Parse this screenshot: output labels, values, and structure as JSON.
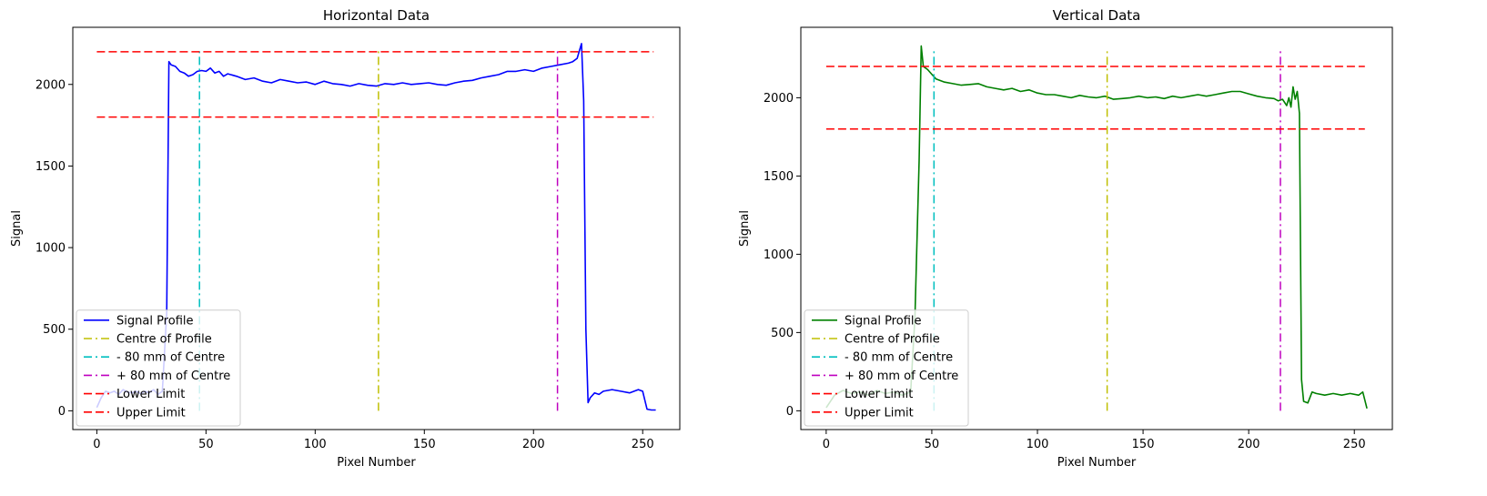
{
  "chart_data": [
    {
      "type": "line",
      "title": "Horizontal Data",
      "xlabel": "Pixel Number",
      "ylabel": "Signal",
      "xlim": [
        -11,
        267
      ],
      "ylim": [
        -115,
        2350
      ],
      "xticks": [
        0,
        50,
        100,
        150,
        200,
        250
      ],
      "yticks": [
        0,
        500,
        1000,
        1500,
        2000
      ],
      "legend_position": "lower-left",
      "series": [
        {
          "name": "Signal Profile",
          "color": "#0000ff",
          "style": "solid",
          "x": [
            0,
            2,
            4,
            6,
            8,
            10,
            12,
            14,
            16,
            18,
            20,
            22,
            24,
            26,
            28,
            30,
            32,
            33,
            34,
            36,
            38,
            40,
            42,
            44,
            46,
            48,
            50,
            52,
            54,
            56,
            58,
            60,
            64,
            68,
            72,
            76,
            80,
            84,
            88,
            92,
            96,
            100,
            104,
            108,
            112,
            116,
            120,
            124,
            128,
            132,
            136,
            140,
            144,
            148,
            152,
            156,
            160,
            164,
            168,
            172,
            176,
            180,
            184,
            188,
            192,
            196,
            200,
            204,
            208,
            212,
            216,
            218,
            220,
            222,
            223,
            224,
            225,
            226,
            228,
            230,
            232,
            236,
            240,
            244,
            248,
            250,
            252,
            254,
            256
          ],
          "y": [
            20,
            80,
            120,
            110,
            120,
            100,
            130,
            115,
            110,
            120,
            105,
            120,
            110,
            130,
            100,
            120,
            600,
            2140,
            2120,
            2110,
            2080,
            2070,
            2050,
            2060,
            2080,
            2085,
            2080,
            2100,
            2070,
            2080,
            2050,
            2065,
            2050,
            2030,
            2040,
            2020,
            2010,
            2030,
            2020,
            2010,
            2015,
            2000,
            2020,
            2005,
            2000,
            1990,
            2005,
            1995,
            1990,
            2005,
            2000,
            2010,
            2000,
            2005,
            2010,
            2000,
            1995,
            2010,
            2020,
            2025,
            2040,
            2050,
            2060,
            2080,
            2080,
            2090,
            2080,
            2100,
            2110,
            2120,
            2130,
            2140,
            2160,
            2250,
            1900,
            500,
            50,
            80,
            110,
            100,
            120,
            130,
            120,
            110,
            130,
            120,
            10,
            5,
            5
          ]
        },
        {
          "name": "Centre of Profile",
          "color": "#bfbf00",
          "style": "dashdot",
          "x": [
            129,
            129
          ],
          "y": [
            0,
            2220
          ]
        },
        {
          "name": "- 80 mm of Centre",
          "color": "#00bfbf",
          "style": "dashdot",
          "x": [
            47,
            47
          ],
          "y": [
            0,
            2220
          ]
        },
        {
          "name": "+ 80 mm of Centre",
          "color": "#bf00bf",
          "style": "dashdot",
          "x": [
            211,
            211
          ],
          "y": [
            0,
            2220
          ]
        },
        {
          "name": "Lower Limit",
          "color": "#ff0000",
          "style": "dashed",
          "x": [
            0,
            255
          ],
          "y": [
            1800,
            1800
          ]
        },
        {
          "name": "Upper Limit",
          "color": "#ff0000",
          "style": "dashed",
          "x": [
            0,
            255
          ],
          "y": [
            2200,
            2200
          ]
        }
      ]
    },
    {
      "type": "line",
      "title": "Vertical Data",
      "xlabel": "Pixel Number",
      "ylabel": "Signal",
      "xlim": [
        -12,
        268
      ],
      "ylim": [
        -120,
        2450
      ],
      "xticks": [
        0,
        50,
        100,
        150,
        200,
        250
      ],
      "yticks": [
        0,
        500,
        1000,
        1500,
        2000
      ],
      "legend_position": "lower-left",
      "series": [
        {
          "name": "Signal Profile",
          "color": "#008000",
          "style": "solid",
          "x": [
            0,
            4,
            8,
            12,
            16,
            20,
            24,
            28,
            32,
            36,
            40,
            42,
            44,
            45,
            46,
            48,
            50,
            52,
            54,
            56,
            60,
            64,
            68,
            72,
            76,
            80,
            84,
            88,
            92,
            96,
            100,
            104,
            108,
            112,
            116,
            120,
            124,
            128,
            132,
            136,
            140,
            144,
            148,
            152,
            156,
            160,
            164,
            168,
            172,
            176,
            180,
            184,
            188,
            192,
            196,
            200,
            204,
            208,
            212,
            214,
            216,
            218,
            219,
            220,
            221,
            222,
            223,
            224,
            225,
            226,
            228,
            230,
            232,
            236,
            240,
            244,
            248,
            252,
            254,
            256
          ],
          "y": [
            20,
            100,
            130,
            110,
            120,
            100,
            130,
            110,
            120,
            100,
            120,
            600,
            1600,
            2330,
            2200,
            2180,
            2150,
            2120,
            2110,
            2100,
            2090,
            2080,
            2085,
            2090,
            2070,
            2060,
            2050,
            2060,
            2040,
            2050,
            2030,
            2020,
            2020,
            2010,
            2000,
            2015,
            2005,
            2000,
            2010,
            1990,
            1995,
            2000,
            2010,
            2000,
            2005,
            1995,
            2010,
            2000,
            2010,
            2020,
            2010,
            2020,
            2030,
            2040,
            2040,
            2025,
            2010,
            2000,
            1995,
            1980,
            1990,
            1950,
            2000,
            1940,
            2070,
            1990,
            2040,
            1900,
            200,
            60,
            50,
            120,
            110,
            100,
            110,
            100,
            110,
            100,
            120,
            15
          ]
        },
        {
          "name": "Centre of Profile",
          "color": "#bfbf00",
          "style": "dashdot",
          "x": [
            133,
            133
          ],
          "y": [
            0,
            2320
          ]
        },
        {
          "name": "- 80 mm of Centre",
          "color": "#00bfbf",
          "style": "dashdot",
          "x": [
            51,
            51
          ],
          "y": [
            0,
            2320
          ]
        },
        {
          "name": "+ 80 mm of Centre",
          "color": "#bf00bf",
          "style": "dashdot",
          "x": [
            215,
            215
          ],
          "y": [
            0,
            2320
          ]
        },
        {
          "name": "Lower Limit",
          "color": "#ff0000",
          "style": "dashed",
          "x": [
            0,
            255
          ],
          "y": [
            1800,
            1800
          ]
        },
        {
          "name": "Upper Limit",
          "color": "#ff0000",
          "style": "dashed",
          "x": [
            0,
            255
          ],
          "y": [
            2200,
            2200
          ]
        }
      ]
    }
  ]
}
